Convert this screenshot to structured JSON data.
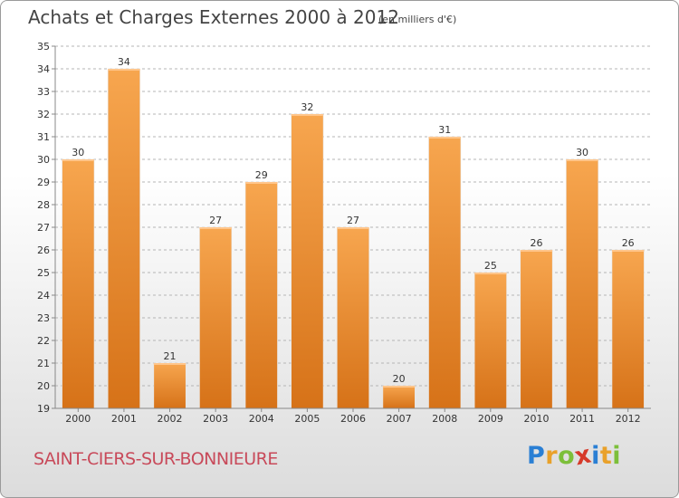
{
  "header": {
    "title": "Achats et Charges Externes 2000 à 2012",
    "subtitle": "(en milliers d'€)"
  },
  "footer": {
    "commune": "SAINT-CIERS-SUR-BONNIEURE",
    "logo_letters": [
      "P",
      "r",
      "o",
      "x",
      "i",
      "t",
      "i"
    ],
    "logo_colors": [
      "#2a7fd4",
      "#e9a12a",
      "#7cbf3a",
      "#d63a2a",
      "#2a7fd4",
      "#e9a12a",
      "#7cbf3a"
    ]
  },
  "colors": {
    "bar_light": "#f7a64f",
    "bar_dark": "#d67218",
    "axis": "#888888",
    "grid": "#b5b5b5"
  },
  "chart_data": {
    "type": "bar",
    "title": "Achats et Charges Externes 2000 à 2012",
    "subtitle": "(en milliers d'€)",
    "categories": [
      "2000",
      "2001",
      "2002",
      "2003",
      "2004",
      "2005",
      "2006",
      "2007",
      "2008",
      "2009",
      "2010",
      "2011",
      "2012"
    ],
    "values": [
      30,
      34,
      21,
      27,
      29,
      32,
      27,
      20,
      31,
      25,
      26,
      30,
      26
    ],
    "ylim": [
      19,
      35
    ],
    "yticks": [
      19,
      20,
      21,
      22,
      23,
      24,
      25,
      26,
      27,
      28,
      29,
      30,
      31,
      32,
      33,
      34,
      35
    ],
    "grid": "horizontal dashed",
    "legend": "none"
  }
}
